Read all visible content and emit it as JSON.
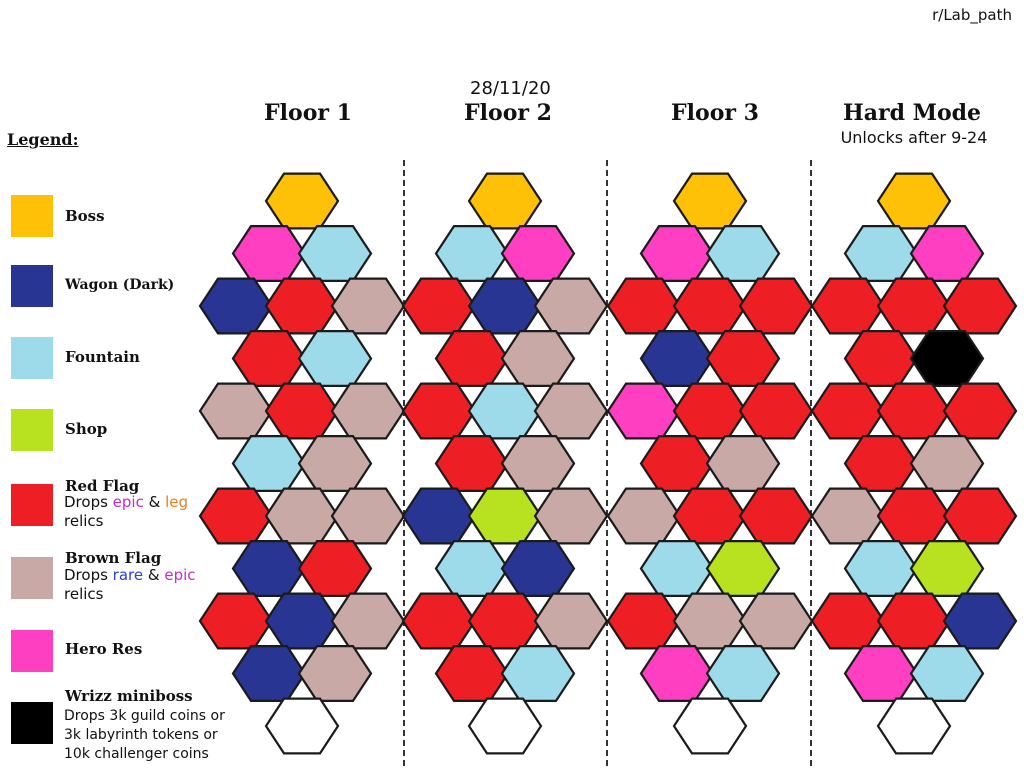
{
  "credit": "r/Lab_path",
  "date": "28/11/20",
  "floors": [
    {
      "title": "Floor 1",
      "subtitle": ""
    },
    {
      "title": "Floor 2",
      "subtitle": ""
    },
    {
      "title": "Floor 3",
      "subtitle": ""
    },
    {
      "title": "Hard Mode",
      "subtitle": "Unlocks after 9-24"
    }
  ],
  "legend": {
    "title": "Legend:",
    "items": [
      {
        "key": "boss",
        "label": "Boss",
        "color": "#ffc107"
      },
      {
        "key": "wagon",
        "label": "Wagon (Dark)",
        "color": "#283593"
      },
      {
        "key": "fountain",
        "label": "Fountain",
        "color": "#9edbea"
      },
      {
        "key": "shop",
        "label": "Shop",
        "color": "#b8e21f"
      },
      {
        "key": "red",
        "label": "Red Flag",
        "color": "#ed1f24",
        "desc_prefix": "Drops ",
        "desc_a": "epic",
        "desc_mid": " & ",
        "desc_b": "leg",
        "desc_suffix": "relics"
      },
      {
        "key": "brown",
        "label": "Brown Flag",
        "color": "#c9a9a6",
        "desc_prefix": "Drops ",
        "desc_a": "rare",
        "desc_mid": " & ",
        "desc_b": "epic",
        "desc_suffix": "relics"
      },
      {
        "key": "hero",
        "label": "Hero Res",
        "color": "#ff3fc2"
      },
      {
        "key": "wrizz",
        "label": "Wrizz miniboss",
        "color": "#000000",
        "desc_lines": [
          "Drops 3k guild coins or",
          "3k labyrinth tokens or",
          "10k challenger coins"
        ]
      }
    ]
  },
  "tile_colors": {
    "Y": "#ffc107",
    "P": "#ff3fc2",
    "C": "#9edbea",
    "D": "#283593",
    "R": "#ed1f24",
    "B": "#c9a9a6",
    "G": "#b8e21f",
    "K": "#000000",
    "W": "#ffffff"
  },
  "maps": [
    [
      "Y",
      "PC",
      "DRB",
      "RC",
      "BRB",
      "CB",
      "RBB",
      "DR",
      "RDB",
      "DB",
      "W"
    ],
    [
      "Y",
      "CP",
      "RDB",
      "RB",
      "RCB",
      "RB",
      "DGB",
      "CD",
      "RRB",
      "RC",
      "W"
    ],
    [
      "Y",
      "PC",
      "RRR",
      "DR",
      "PRR",
      "RB",
      "BRR",
      "CG",
      "RBB",
      "PC",
      "W"
    ],
    [
      "Y",
      "CP",
      "RRR",
      "RK",
      "RRR",
      "RB",
      "BRR",
      "CG",
      "RRD",
      "PC",
      "W"
    ]
  ]
}
